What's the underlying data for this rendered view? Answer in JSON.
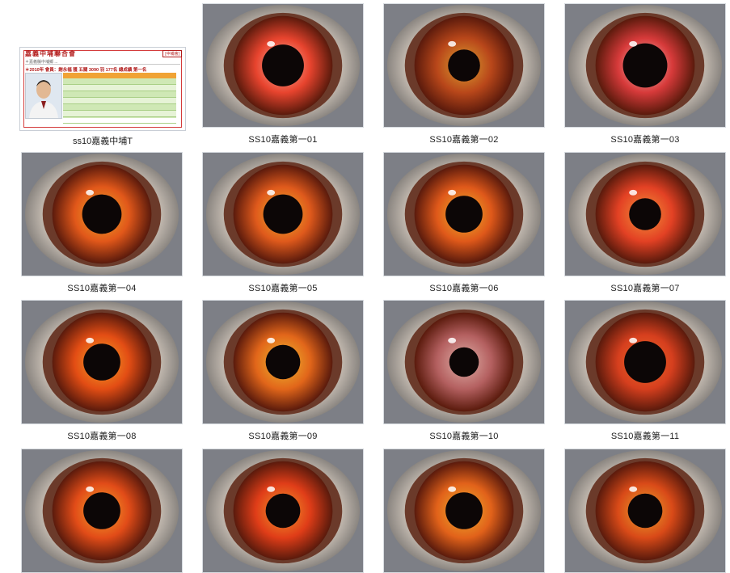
{
  "document_tile": {
    "caption": "ss10嘉義中埔T",
    "title": "嘉義中埔聯合會",
    "tag": "[中埔會]",
    "subtitle": "＊嘉義縣中埔鄉 ...",
    "line": "＊2010年 會員：謝永福 獲 五關 3090 羽 177名 總成績 第一名",
    "table_header_color": "#f0a335",
    "table_color": "#cfe8b5"
  },
  "eye_tiles": [
    {
      "caption": "SS10嘉義第一01",
      "iris": "#e8442e",
      "iris2": "#f6b7a6",
      "pupil_r": 0.17
    },
    {
      "caption": "SS10嘉義第一02",
      "iris": "#b9471a",
      "iris2": "#d9a130",
      "pupil_r": 0.13
    },
    {
      "caption": "SS10嘉義第一03",
      "iris": "#d73a3a",
      "iris2": "#f2c4c0",
      "pupil_r": 0.18
    },
    {
      "caption": "SS10嘉義第一04",
      "iris": "#e2581a",
      "iris2": "#e7a928",
      "pupil_r": 0.16
    },
    {
      "caption": "SS10嘉義第一05",
      "iris": "#e05a1c",
      "iris2": "#e8b22a",
      "pupil_r": 0.16
    },
    {
      "caption": "SS10嘉義第一06",
      "iris": "#e0591a",
      "iris2": "#e8b52c",
      "pupil_r": 0.15
    },
    {
      "caption": "SS10嘉義第一07",
      "iris": "#e34124",
      "iris2": "#f2933a",
      "pupil_r": 0.13
    },
    {
      "caption": "SS10嘉義第一08",
      "iris": "#e34d14",
      "iris2": "#f1a427",
      "pupil_r": 0.15
    },
    {
      "caption": "SS10嘉義第一09",
      "iris": "#e2661a",
      "iris2": "#ecbc30",
      "pupil_r": 0.14
    },
    {
      "caption": "SS10嘉義第一10",
      "iris": "#b46060",
      "iris2": "#e0b0a8",
      "pupil_r": 0.12
    },
    {
      "caption": "SS10嘉義第一11",
      "iris": "#d63f1e",
      "iris2": "#ec6d2a",
      "pupil_r": 0.17
    },
    {
      "caption": "",
      "iris": "#e24c18",
      "iris2": "#f0a52c",
      "pupil_r": 0.15
    },
    {
      "caption": "",
      "iris": "#e03d18",
      "iris2": "#ef9a2c",
      "pupil_r": 0.14
    },
    {
      "caption": "",
      "iris": "#e2621a",
      "iris2": "#e9b22e",
      "pupil_r": 0.15
    },
    {
      "caption": "",
      "iris": "#d94a18",
      "iris2": "#e8a42c",
      "pupil_r": 0.14
    }
  ]
}
